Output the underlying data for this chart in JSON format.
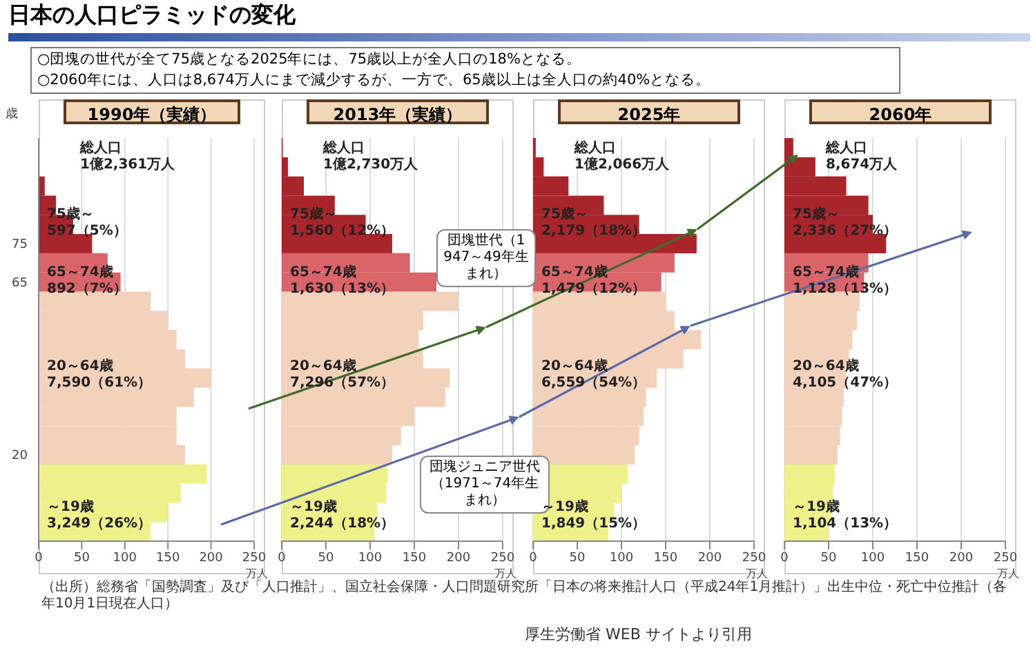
{
  "chart_data": [
    {
      "type": "other",
      "title": "日本の人口ピラミッドの変化",
      "annotations": [
        "○団塊の世代が全て75歳となる2025年には、75歳以上が全人口の18%となる。",
        "○2060年には、人口は8,674万人にまで減少するが、一方で、65歳以上は全人口の約40%となる。",
        "団塊世代（1947～49年生まれ）",
        "団塊ジュニア世代（1971～74年生まれ）",
        "（出所）総務省「国勢調査」及び「人口推計」、国立社会保障・人口問題研究所「日本の将来推計人口（平成24年1月推計）」出生中位・死亡中位推計（各年10月1日現在人口）",
        "厚生労働省 WEB サイトより引用"
      ]
    },
    {
      "type": "bar",
      "orientation": "horizontal",
      "title": "1990年（実績）",
      "ylabel": "歳",
      "xlabel": "万人",
      "grid": "x",
      "xlim": [
        0,
        250
      ],
      "xticks": [
        0,
        50,
        100,
        150,
        200,
        250
      ],
      "categories": [
        null,
        null,
        null,
        null,
        null,
        "75",
        null,
        "65",
        null,
        null,
        null,
        null,
        null,
        null,
        null,
        null,
        "20",
        null,
        null,
        null,
        null
      ],
      "values": [
        0,
        null,
        7,
        20,
        40,
        62,
        80,
        95,
        130,
        150,
        160,
        170,
        200,
        180,
        160,
        160,
        170,
        195,
        165,
        150,
        130
      ],
      "colors": [
        "#a8262b",
        "#a8262b",
        "#a8262b",
        "#a8262b",
        "#a8262b",
        "#a8262b",
        "#d9646a",
        "#d9646a",
        "#f2d2bb",
        "#f2d2bb",
        "#f2d2bb",
        "#f2d2bb",
        "#f2d2bb",
        "#f2d2bb",
        "#f2d2bb",
        "#f2d2bb",
        "#f2d2bb",
        "#eef08a",
        "#eef08a",
        "#eef08a",
        "#eef08a"
      ],
      "annotations": [
        "総人口\n1億2,361万人",
        "75歳～\n597（5%）",
        "65～74歳\n892（7%）",
        "20～64歳\n7,590（61%）",
        "～19歳\n3,249（26%）"
      ]
    },
    {
      "type": "bar",
      "orientation": "horizontal",
      "title": "2013年（実績）",
      "xlabel": "万人",
      "grid": "x",
      "tick_labels": "x",
      "xlim": [
        0,
        250
      ],
      "xticks": [
        0,
        50,
        100,
        150,
        200,
        250
      ],
      "categories": [
        null,
        null,
        null,
        null,
        null,
        "75",
        null,
        "65",
        null,
        null,
        null,
        null,
        null,
        null,
        null,
        null,
        "20",
        null,
        null,
        null,
        null
      ],
      "values": [
        1,
        7,
        25,
        60,
        95,
        125,
        145,
        175,
        200,
        160,
        155,
        160,
        190,
        185,
        150,
        135,
        125,
        120,
        118,
        108,
        105
      ],
      "colors": [
        "#a8262b",
        "#a8262b",
        "#a8262b",
        "#a8262b",
        "#a8262b",
        "#a8262b",
        "#d9646a",
        "#d9646a",
        "#f2d2bb",
        "#f2d2bb",
        "#f2d2bb",
        "#f2d2bb",
        "#f2d2bb",
        "#f2d2bb",
        "#f2d2bb",
        "#f2d2bb",
        "#f2d2bb",
        "#eef08a",
        "#eef08a",
        "#eef08a",
        "#eef08a"
      ],
      "annotations": [
        "総人口\n1億2,730万人",
        "75歳～\n1,560（12%）",
        "65～74歳\n1,630（13%）",
        "20～64歳\n7,296（57%）",
        "～19歳\n2,244（18%）"
      ]
    },
    {
      "type": "bar",
      "orientation": "horizontal",
      "title": "2025年",
      "xlabel": "万人",
      "grid": "x",
      "tick_labels": "x",
      "xlim": [
        0,
        250
      ],
      "xticks": [
        0,
        50,
        100,
        150,
        200,
        250
      ],
      "categories": [
        null,
        null,
        null,
        null,
        null,
        "75",
        null,
        "65",
        null,
        null,
        null,
        null,
        null,
        null,
        null,
        null,
        "20",
        null,
        null,
        null,
        null
      ],
      "values": [
        3,
        12,
        40,
        80,
        120,
        185,
        160,
        145,
        150,
        160,
        190,
        170,
        140,
        128,
        125,
        120,
        115,
        107,
        100,
        92,
        85
      ],
      "colors": [
        "#a8262b",
        "#a8262b",
        "#a8262b",
        "#a8262b",
        "#a8262b",
        "#a8262b",
        "#d9646a",
        "#d9646a",
        "#f2d2bb",
        "#f2d2bb",
        "#f2d2bb",
        "#f2d2bb",
        "#f2d2bb",
        "#f2d2bb",
        "#f2d2bb",
        "#f2d2bb",
        "#f2d2bb",
        "#eef08a",
        "#eef08a",
        "#eef08a",
        "#eef08a"
      ],
      "annotations": [
        "総人口\n1億2,066万人",
        "75歳～\n2,179（18%）",
        "65～74歳\n1,479（12%）",
        "20～64歳\n6,559（54%）",
        "～19歳\n1,849（15%）"
      ]
    },
    {
      "type": "bar",
      "orientation": "horizontal",
      "title": "2060年",
      "xlabel": "万人",
      "grid": "x",
      "tick_labels": "x",
      "xlim": [
        0,
        250
      ],
      "xticks": [
        0,
        50,
        100,
        150,
        200,
        250
      ],
      "categories": [
        null,
        null,
        null,
        null,
        null,
        "75",
        null,
        "65",
        null,
        null,
        null,
        null,
        null,
        null,
        null,
        null,
        "20",
        null,
        null,
        null,
        null
      ],
      "values": [
        10,
        35,
        70,
        95,
        100,
        115,
        95,
        90,
        85,
        82,
        77,
        73,
        70,
        67,
        65,
        63,
        60,
        57,
        55,
        53,
        50
      ],
      "colors": [
        "#a8262b",
        "#a8262b",
        "#a8262b",
        "#a8262b",
        "#a8262b",
        "#a8262b",
        "#d9646a",
        "#d9646a",
        "#f2d2bb",
        "#f2d2bb",
        "#f2d2bb",
        "#f2d2bb",
        "#f2d2bb",
        "#f2d2bb",
        "#f2d2bb",
        "#f2d2bb",
        "#f2d2bb",
        "#eef08a",
        "#eef08a",
        "#eef08a",
        "#eef08a"
      ],
      "annotations": [
        "総人口\n8,674万人",
        "75歳～\n2,336（27%）",
        "65～74歳\n1,128（13%）",
        "20～64歳\n4,105（47%）",
        "～19歳\n1,104（13%）"
      ]
    }
  ]
}
